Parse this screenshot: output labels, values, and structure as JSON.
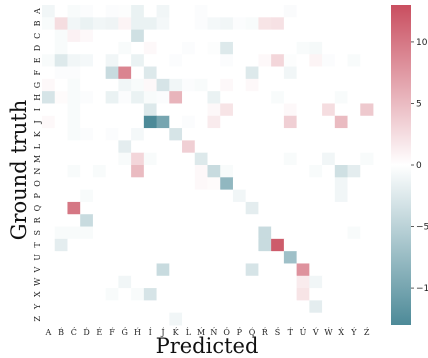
{
  "chart_data": {
    "type": "heatmap",
    "title": "",
    "xlabel": "Predicted",
    "ylabel": "Ground truth",
    "x_tick_labels": [
      "A",
      "B",
      "C",
      "D",
      "E",
      "F",
      "G",
      "H",
      "I",
      "J",
      "K",
      "L",
      "M",
      "N",
      "O",
      "P",
      "Q",
      "R",
      "S",
      "T",
      "U",
      "V",
      "W",
      "X",
      "Y",
      "Z"
    ],
    "y_tick_labels": [
      "A",
      "B",
      "C",
      "D",
      "E",
      "F",
      "G",
      "H",
      "I",
      "J",
      "K",
      "L",
      "M",
      "N",
      "O",
      "P",
      "Q",
      "R",
      "S",
      "T",
      "U",
      "V",
      "W",
      "X",
      "Y",
      "Z"
    ],
    "x_tick_accents": [
      "",
      "́",
      "́",
      "́",
      "́",
      "́",
      "́",
      "́",
      "́",
      "́",
      "́",
      "́",
      "́",
      "́",
      "́",
      "́",
      "́",
      "́",
      "́",
      "́",
      "́",
      "́",
      "́",
      "́",
      "́",
      "́"
    ],
    "value_range": [
      -13,
      13
    ],
    "colorbar": {
      "ticks": [
        10,
        5,
        0,
        -5,
        -10
      ]
    },
    "colors": {
      "negative": "#4d8a98",
      "zero": "#ffffff",
      "positive": "#c94e5f"
    },
    "matrix": [
      [
        -1,
        0,
        -0.5,
        -0.3,
        0,
        -0.3,
        -0.2,
        -1.5,
        0,
        -1,
        0,
        0,
        -0.3,
        0,
        0,
        0,
        0,
        0,
        0,
        -0.4,
        0,
        0,
        0,
        0,
        0,
        0
      ],
      [
        -0.5,
        2.5,
        -1,
        -1.5,
        -1,
        -1.2,
        0.8,
        -1.5,
        -1.5,
        -0.8,
        0,
        0,
        -0.3,
        -0.8,
        -1,
        -0.3,
        -0.5,
        2,
        2.2,
        0,
        0,
        0,
        0,
        0,
        0,
        0
      ],
      [
        0,
        -0.5,
        1,
        0.5,
        0,
        0,
        0,
        -3.5,
        0,
        0,
        0,
        0,
        0,
        0,
        0,
        0,
        0,
        0,
        0,
        0,
        0,
        0,
        0,
        0,
        0,
        0
      ],
      [
        0,
        -0.5,
        0,
        0,
        0,
        0,
        -0.5,
        0,
        0.5,
        0,
        0,
        -0.3,
        0,
        -0.2,
        -2.5,
        0,
        0,
        0,
        0,
        0,
        -0.5,
        -0.7,
        0,
        0,
        0,
        0
      ],
      [
        -0.5,
        -2.5,
        -1,
        -0.8,
        0,
        -1,
        0,
        -1.5,
        0,
        0,
        -0.3,
        0,
        0,
        0,
        -0.3,
        0,
        0,
        0.5,
        3,
        -0.2,
        0,
        0.8,
        -0.3,
        0,
        -0.5,
        0
      ],
      [
        0,
        -0.3,
        -0.3,
        0,
        0,
        -4,
        9,
        0,
        -2.5,
        0,
        0,
        0,
        0,
        0,
        0,
        0,
        -2.5,
        0,
        0,
        -1,
        0,
        0,
        0,
        0,
        0,
        0
      ],
      [
        0.5,
        0,
        -0.5,
        0,
        0,
        0,
        -1,
        -0.5,
        0.5,
        -3,
        -1,
        -0.3,
        -0.5,
        0,
        0.5,
        0,
        0.5,
        0,
        0,
        0,
        0,
        0,
        0,
        0,
        0,
        0
      ],
      [
        -3,
        0.3,
        -0.5,
        -0.3,
        0,
        -1.5,
        -0.3,
        -1.5,
        -0.5,
        -0.3,
        5.5,
        0,
        0,
        -1.5,
        0,
        0,
        0,
        0,
        -0.5,
        0,
        0,
        0,
        0,
        -0.5,
        0,
        0
      ],
      [
        0,
        0,
        -0.5,
        0,
        0,
        0,
        0,
        0,
        -2.5,
        0,
        0,
        0,
        0,
        0.5,
        2,
        0,
        0,
        0,
        0,
        0.5,
        0,
        0,
        2.5,
        0,
        0,
        4
      ],
      [
        0.5,
        0,
        -0.5,
        0,
        0,
        0,
        0,
        0,
        -13,
        -10,
        0,
        -0.3,
        0,
        1.5,
        0,
        0,
        0,
        0,
        0,
        3.5,
        0,
        0,
        0,
        5,
        0,
        0
      ],
      [
        0,
        0,
        -0.5,
        -0.3,
        0,
        -0.3,
        0,
        -0.8,
        0,
        0,
        -3,
        0,
        0,
        0,
        0,
        0,
        0,
        0,
        0,
        0,
        0,
        0,
        0,
        0,
        0,
        0
      ],
      [
        0,
        0,
        0,
        0,
        0,
        0,
        -2,
        0,
        0,
        0,
        0,
        3.5,
        0,
        0,
        0,
        0,
        0,
        0,
        0,
        0,
        0,
        0,
        0,
        0,
        0,
        0
      ],
      [
        0,
        0,
        0,
        0,
        0,
        0,
        -0.5,
        3,
        -0.5,
        0,
        0,
        0,
        -2.5,
        0,
        0,
        0,
        0,
        0,
        0,
        -0.5,
        0,
        0,
        -1,
        0,
        0,
        -0.5
      ],
      [
        0,
        0,
        -0.5,
        0,
        -0.5,
        0,
        0,
        5,
        0,
        0,
        0,
        0,
        0.5,
        -4,
        -0.5,
        0,
        0,
        0,
        0,
        0,
        0,
        -0.5,
        0,
        -3.5,
        -2,
        0
      ],
      [
        0,
        0,
        0,
        0,
        0,
        0,
        0,
        0,
        0,
        0,
        0,
        0,
        0.5,
        0.3,
        -8,
        0,
        0,
        0,
        0,
        0,
        0,
        0,
        0,
        -1,
        0,
        0
      ],
      [
        0,
        0,
        0,
        -0.5,
        0,
        0,
        0,
        0,
        0,
        0,
        0,
        0,
        0,
        0,
        0,
        -1,
        0,
        0,
        0,
        0,
        0,
        0,
        0,
        -1,
        0,
        0
      ],
      [
        0,
        0,
        10,
        0,
        0,
        0,
        0,
        0,
        0,
        0,
        0,
        0,
        0,
        0,
        0,
        0,
        -2,
        0,
        0,
        0,
        0,
        0,
        0,
        0,
        0,
        0
      ],
      [
        0,
        0,
        0,
        -4,
        0,
        0,
        0,
        0,
        0,
        0,
        0,
        0,
        0,
        0,
        0,
        0,
        0,
        0,
        0,
        0,
        0,
        0,
        0,
        0,
        0,
        0
      ],
      [
        0,
        -0.5,
        -0.5,
        -0.5,
        0,
        0,
        0,
        0,
        0,
        0,
        0,
        0,
        0,
        0,
        0,
        0,
        0,
        -4,
        0,
        0,
        0,
        0,
        0,
        0,
        -0.5,
        0
      ],
      [
        0,
        -2,
        0,
        0,
        0,
        0,
        0,
        0,
        0,
        0,
        0,
        0,
        0,
        0,
        0,
        0,
        0,
        -4,
        12,
        0,
        0,
        0,
        0,
        0,
        0,
        0
      ],
      [
        0,
        0,
        0,
        0,
        0,
        0,
        0,
        0,
        0,
        0,
        0,
        0,
        0,
        0,
        0,
        0,
        0,
        0,
        0,
        -7,
        0,
        0,
        0,
        0,
        0,
        0
      ],
      [
        0,
        0,
        0,
        0,
        0,
        0,
        0,
        0,
        0,
        -4,
        0,
        0,
        0,
        0,
        0,
        0,
        -3,
        0,
        0,
        0,
        8,
        0,
        0,
        0,
        0,
        0
      ],
      [
        0,
        0,
        0,
        0,
        0,
        0,
        -1,
        0,
        0,
        0,
        0,
        0,
        0,
        0,
        0,
        0,
        0,
        0,
        0,
        0,
        1.5,
        -1,
        0,
        0,
        0,
        0
      ],
      [
        0,
        0,
        0,
        0,
        0,
        -0.5,
        0,
        -0.5,
        -3,
        0,
        0,
        0,
        0,
        0,
        0,
        0,
        0,
        0,
        0,
        0,
        2,
        0,
        0,
        0,
        0,
        0
      ],
      [
        0,
        0,
        0,
        0,
        0,
        0,
        0,
        0,
        0,
        0,
        0,
        0,
        0,
        0,
        0,
        0,
        0,
        0,
        0,
        0,
        0,
        -2,
        0,
        0,
        0,
        0
      ],
      [
        0,
        0,
        0,
        0,
        0,
        0,
        0,
        0,
        0,
        0,
        -1,
        0,
        0,
        0,
        0,
        0,
        0,
        0,
        0,
        0,
        0,
        0,
        0,
        0,
        0,
        0
      ]
    ]
  }
}
